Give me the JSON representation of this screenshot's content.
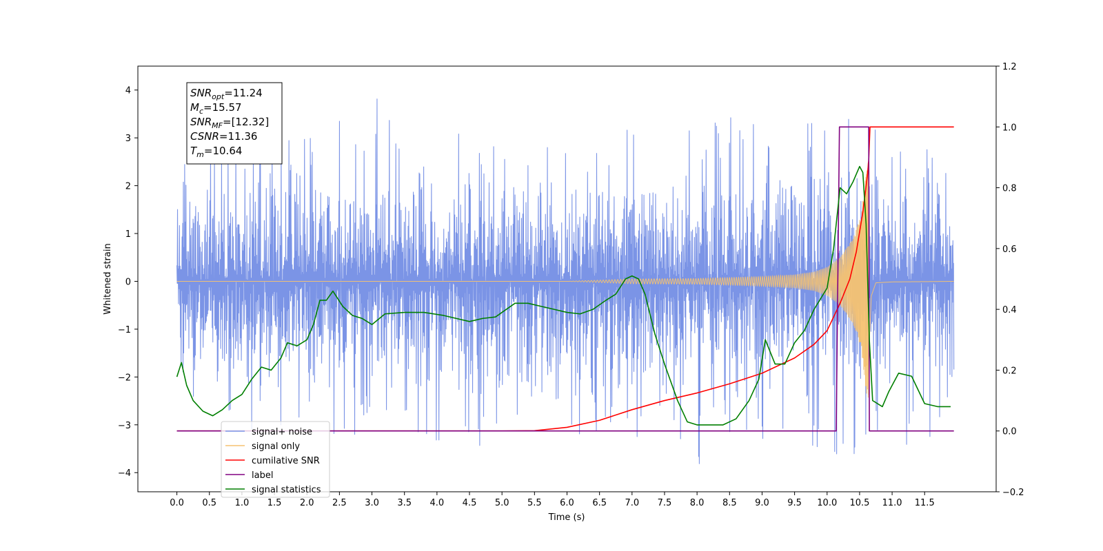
{
  "chart_data": {
    "type": "line",
    "xlabel": "Time (s)",
    "ylabel": "Whitened strain",
    "xlim": [
      -0.6,
      12.6
    ],
    "ylim": [
      -4.4,
      4.5
    ],
    "y2lim": [
      -0.2,
      1.2
    ],
    "x_ticks": [
      0.0,
      0.5,
      1.0,
      1.5,
      2.0,
      2.5,
      3.0,
      3.5,
      4.0,
      4.5,
      5.0,
      5.5,
      6.0,
      6.5,
      7.0,
      7.5,
      8.0,
      8.5,
      9.0,
      9.5,
      10.0,
      10.5,
      11.0,
      11.5
    ],
    "x_tick_labels": [
      "0.0",
      "0.5",
      "1.0",
      "1.5",
      "2.0",
      "2.5",
      "3.0",
      "3.5",
      "4.0",
      "4.5",
      "5.0",
      "5.5",
      "6.0",
      "6.5",
      "7.0",
      "7.5",
      "8.0",
      "8.5",
      "9.0",
      "9.5",
      "10.0",
      "10.5",
      "11.0",
      "11.5"
    ],
    "y_ticks": [
      -4,
      -3,
      -2,
      -1,
      0,
      1,
      2,
      3,
      4
    ],
    "y_tick_labels": [
      "−4",
      "−3",
      "−2",
      "−1",
      "0",
      "1",
      "2",
      "3",
      "4"
    ],
    "y2_ticks": [
      -0.2,
      0.0,
      0.2,
      0.4,
      0.6,
      0.8,
      1.0,
      1.2
    ],
    "y2_tick_labels": [
      "−0.2",
      "0.0",
      "0.2",
      "0.4",
      "0.6",
      "0.8",
      "1.0",
      "1.2"
    ],
    "grid": false,
    "legend_position": "bottom-left",
    "annotations": {
      "lines": [
        {
          "sym": "SNR",
          "sub": "opt",
          "val": "=11.24"
        },
        {
          "sym": "M",
          "sub": "c",
          "val": "=15.57"
        },
        {
          "sym": "SNR",
          "sub": "MF",
          "val": "=[12.32]"
        },
        {
          "sym": "CSNR",
          "sub": "",
          "val": "=11.36"
        },
        {
          "sym": "T",
          "sub": "m",
          "val": "=10.64"
        }
      ]
    },
    "series": [
      {
        "name": "signal+ noise",
        "color": "#7b94e6",
        "axis": "left",
        "kind": "noise-envelope",
        "x_range": [
          0.0,
          11.95
        ],
        "typical_band": [
          -1.8,
          1.8
        ],
        "x": [
          0.0,
          0.5,
          1.0,
          1.5,
          2.0,
          2.5,
          2.95,
          3.5,
          4.0,
          4.5,
          4.6,
          5.0,
          5.5,
          6.0,
          6.5,
          7.0,
          7.5,
          8.0,
          8.5,
          9.0,
          9.5,
          10.0,
          10.5,
          10.6,
          11.0,
          11.5,
          11.95
        ],
        "upper": [
          2.3,
          2.9,
          3.0,
          3.3,
          3.2,
          3.4,
          4.1,
          3.3,
          3.3,
          3.1,
          2.8,
          3.3,
          3.1,
          3.1,
          3.2,
          3.4,
          3.3,
          3.1,
          3.5,
          3.2,
          3.4,
          3.3,
          3.5,
          3.2,
          3.1,
          3.6,
          2.3
        ],
        "lower": [
          -2.0,
          -3.2,
          -3.0,
          -3.3,
          -3.1,
          -3.2,
          -3.2,
          -3.3,
          -3.4,
          -3.6,
          -3.8,
          -3.4,
          -3.2,
          -3.3,
          -3.1,
          -3.2,
          -3.5,
          -3.9,
          -3.3,
          -3.4,
          -3.5,
          -3.6,
          -3.7,
          -3.9,
          -3.6,
          -3.5,
          -2.2
        ]
      },
      {
        "name": "signal only",
        "color": "#f5c271",
        "axis": "left",
        "kind": "chirp",
        "x_range": [
          0.0,
          11.95
        ],
        "merger_time": 10.64,
        "envelope_x": [
          0.0,
          6.0,
          7.0,
          8.0,
          8.5,
          9.0,
          9.5,
          9.8,
          10.0,
          10.2,
          10.4,
          10.5,
          10.55,
          10.6,
          10.64,
          10.68,
          10.75,
          11.0,
          11.95
        ],
        "envelope_y": [
          0.0,
          0.0,
          0.05,
          0.06,
          0.08,
          0.1,
          0.14,
          0.2,
          0.3,
          0.5,
          0.9,
          1.3,
          1.7,
          2.3,
          2.6,
          0.5,
          0.05,
          0.02,
          0.0
        ]
      },
      {
        "name": "cumilative SNR",
        "color": "#ff0000",
        "axis": "right",
        "x": [
          0.0,
          5.0,
          5.5,
          6.0,
          6.5,
          7.0,
          7.5,
          8.0,
          8.5,
          9.0,
          9.5,
          9.8,
          10.0,
          10.2,
          10.35,
          10.45,
          10.55,
          10.62,
          10.64,
          10.66,
          11.95
        ],
        "y": [
          0.0,
          0.0,
          0.001,
          0.012,
          0.035,
          0.07,
          0.1,
          0.125,
          0.155,
          0.19,
          0.24,
          0.285,
          0.33,
          0.42,
          0.5,
          0.59,
          0.72,
          0.84,
          0.89,
          1.0,
          1.0
        ]
      },
      {
        "name": "label",
        "color": "#800080",
        "axis": "right",
        "x": [
          0.0,
          10.14,
          10.19,
          10.64,
          10.65,
          10.7,
          11.95
        ],
        "y": [
          0.0,
          0.0,
          1.0,
          1.0,
          0.0,
          0.0,
          0.0
        ]
      },
      {
        "name": "signal statistics",
        "color": "#007f00",
        "axis": "right",
        "x": [
          0.0,
          0.07,
          0.15,
          0.25,
          0.4,
          0.55,
          0.7,
          0.85,
          1.0,
          1.15,
          1.3,
          1.45,
          1.6,
          1.7,
          1.85,
          2.0,
          2.1,
          2.2,
          2.3,
          2.4,
          2.55,
          2.7,
          2.85,
          3.0,
          3.2,
          3.5,
          3.8,
          4.1,
          4.5,
          4.7,
          4.9,
          5.2,
          5.4,
          5.6,
          5.8,
          6.0,
          6.2,
          6.4,
          6.6,
          6.75,
          6.9,
          7.0,
          7.1,
          7.2,
          7.35,
          7.5,
          7.7,
          7.85,
          8.0,
          8.2,
          8.4,
          8.6,
          8.8,
          8.95,
          9.05,
          9.2,
          9.35,
          9.5,
          9.65,
          9.8,
          10.0,
          10.1,
          10.2,
          10.3,
          10.4,
          10.5,
          10.55,
          10.6,
          10.65,
          10.7,
          10.85,
          10.95,
          11.1,
          11.3,
          11.5,
          11.7,
          11.9
        ],
        "y": [
          0.178,
          0.225,
          0.15,
          0.1,
          0.065,
          0.05,
          0.07,
          0.1,
          0.12,
          0.17,
          0.21,
          0.2,
          0.24,
          0.29,
          0.28,
          0.3,
          0.35,
          0.43,
          0.43,
          0.46,
          0.41,
          0.38,
          0.37,
          0.35,
          0.385,
          0.39,
          0.39,
          0.38,
          0.36,
          0.37,
          0.375,
          0.42,
          0.42,
          0.41,
          0.4,
          0.39,
          0.385,
          0.4,
          0.43,
          0.45,
          0.5,
          0.51,
          0.5,
          0.45,
          0.32,
          0.22,
          0.1,
          0.03,
          0.02,
          0.02,
          0.02,
          0.04,
          0.1,
          0.17,
          0.3,
          0.22,
          0.22,
          0.29,
          0.33,
          0.4,
          0.47,
          0.6,
          0.8,
          0.78,
          0.82,
          0.87,
          0.85,
          0.68,
          0.3,
          0.1,
          0.08,
          0.13,
          0.19,
          0.18,
          0.09,
          0.08,
          0.08
        ]
      }
    ]
  }
}
